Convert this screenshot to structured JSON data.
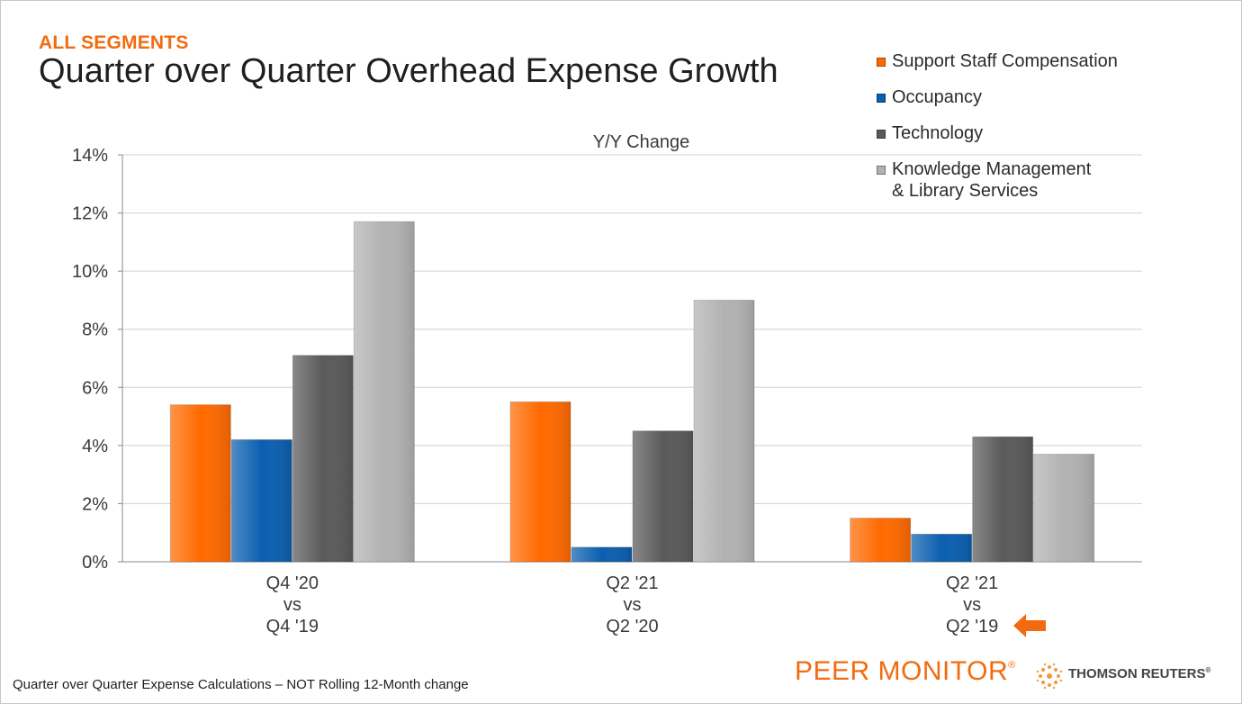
{
  "slide": {
    "kicker": "ALL SEGMENTS",
    "title": "Quarter over Quarter Overhead Expense Growth",
    "footnote": "Quarter over Quarter Expense Calculations – NOT Rolling 12-Month change",
    "brand": "PEER MONITOR",
    "brand_mark": "®",
    "company": "THOMSON REUTERS",
    "company_mark": "®",
    "highlight_arrow_icon": "left-arrow-icon",
    "company_logo_icon": "thomson-reuters-logo-icon"
  },
  "chart_data": {
    "type": "bar",
    "title": "Y/Y Change",
    "xlabel": "",
    "ylabel": "",
    "ylim": [
      0,
      14
    ],
    "yticks": [
      0,
      2,
      4,
      6,
      8,
      10,
      12,
      14
    ],
    "ytick_labels": [
      "0%",
      "2%",
      "4%",
      "6%",
      "8%",
      "10%",
      "12%",
      "14%"
    ],
    "grid": true,
    "legend_position": "top-right",
    "categories": [
      [
        "Q4 '20",
        "vs",
        "Q4 '19"
      ],
      [
        "Q2 '21",
        "vs",
        "Q2 '20"
      ],
      [
        "Q2 '21",
        "vs",
        "Q2 '19"
      ]
    ],
    "series": [
      {
        "name": "Support Staff Compensation",
        "color": "#ff6a00",
        "values": [
          5.4,
          5.5,
          1.5
        ]
      },
      {
        "name": "Occupancy",
        "color": "#0b5fb0",
        "values": [
          4.2,
          0.5,
          0.95
        ]
      },
      {
        "name": "Technology",
        "color": "#5a5a5a",
        "values": [
          7.1,
          4.5,
          4.3
        ]
      },
      {
        "name": "Knowledge Management\n & Library Services",
        "color": "#b2b2b2",
        "values": [
          11.7,
          9.0,
          3.7
        ]
      }
    ]
  }
}
